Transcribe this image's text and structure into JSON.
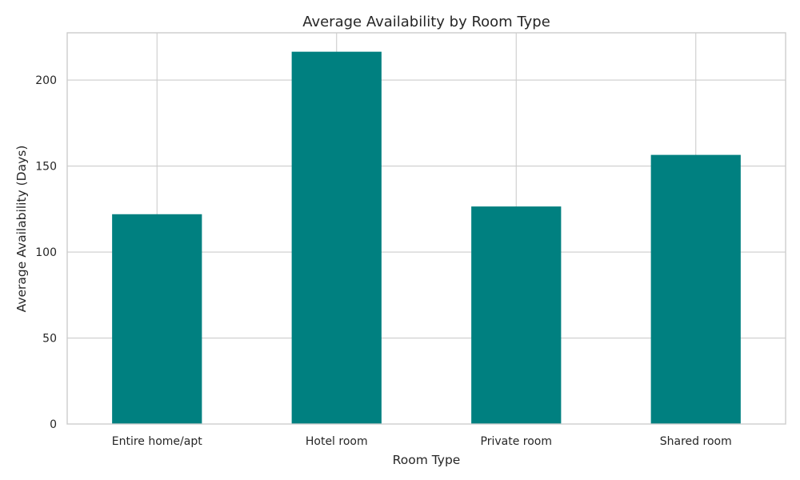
{
  "chart_data": {
    "type": "bar",
    "title": "Average Availability by Room Type",
    "xlabel": "Room Type",
    "ylabel": "Average Availability (Days)",
    "categories": [
      "Entire home/apt",
      "Hotel room",
      "Private room",
      "Shared room"
    ],
    "values": [
      122,
      216.5,
      126.5,
      156.5
    ],
    "ylim": [
      0,
      227.5
    ],
    "yticks": [
      0,
      50,
      100,
      150,
      200
    ],
    "grid": true,
    "legend": "none",
    "bar_color": "#008080"
  }
}
